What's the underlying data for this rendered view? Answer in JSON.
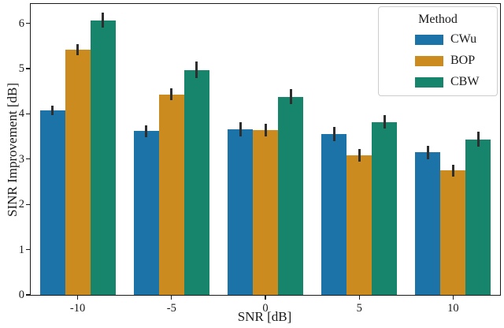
{
  "chart_data": {
    "type": "bar",
    "title": "",
    "xlabel": "SNR [dB]",
    "ylabel": "SINR Improvement [dB]",
    "categories": [
      "-10",
      "-5",
      "0",
      "5",
      "10"
    ],
    "y_ticks": [
      "0",
      "1",
      "2",
      "3",
      "4",
      "5",
      "6"
    ],
    "ylim": [
      0,
      6.43
    ],
    "grid": false,
    "legend": {
      "title": "Method",
      "position": "upper right"
    },
    "error_bar_color": "#2e2e2e",
    "series": [
      {
        "name": "CWu",
        "color": "#1b73a8",
        "values": [
          4.08,
          3.62,
          3.66,
          3.56,
          3.15
        ],
        "errors": [
          0.1,
          0.13,
          0.15,
          0.16,
          0.15
        ]
      },
      {
        "name": "BOP",
        "color": "#cc8b1e",
        "values": [
          5.42,
          4.43,
          3.64,
          3.09,
          2.75
        ],
        "errors": [
          0.13,
          0.13,
          0.14,
          0.14,
          0.13
        ]
      },
      {
        "name": "CBW",
        "color": "#17846c",
        "values": [
          6.07,
          4.97,
          4.38,
          3.82,
          3.44
        ],
        "errors": [
          0.17,
          0.18,
          0.17,
          0.15,
          0.16
        ]
      }
    ]
  }
}
